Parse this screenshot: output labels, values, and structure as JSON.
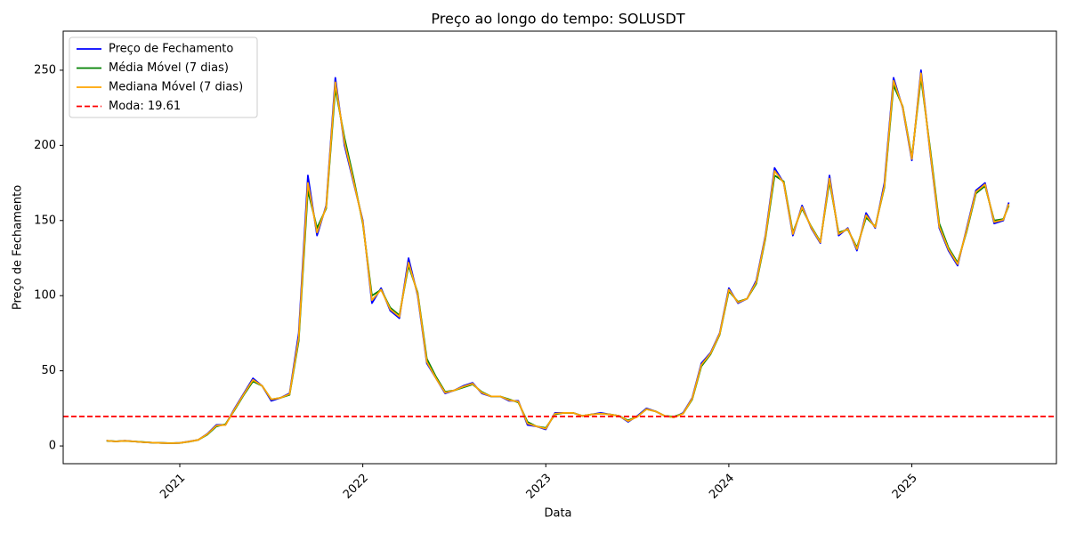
{
  "chart_data": {
    "type": "line",
    "title": "Preço ao longo do tempo: SOLUSDT",
    "x_label": "Data",
    "y_label": "Preço de Fechamento",
    "x": [
      2020.6,
      2020.65,
      2020.7,
      2020.75,
      2020.8,
      2020.85,
      2020.9,
      2020.95,
      2021,
      2021.05,
      2021.1,
      2021.15,
      2021.2,
      2021.25,
      2021.3,
      2021.35,
      2021.4,
      2021.45,
      2021.5,
      2021.55,
      2021.6,
      2021.65,
      2021.7,
      2021.75,
      2021.8,
      2021.85,
      2021.9,
      2021.95,
      2022,
      2022.05,
      2022.1,
      2022.15,
      2022.2,
      2022.25,
      2022.3,
      2022.35,
      2022.4,
      2022.45,
      2022.5,
      2022.55,
      2022.6,
      2022.65,
      2022.7,
      2022.75,
      2022.8,
      2022.85,
      2022.9,
      2022.95,
      2023,
      2023.05,
      2023.1,
      2023.15,
      2023.2,
      2023.25,
      2023.3,
      2023.35,
      2023.4,
      2023.45,
      2023.5,
      2023.55,
      2023.6,
      2023.65,
      2023.7,
      2023.75,
      2023.8,
      2023.85,
      2023.9,
      2023.95,
      2024,
      2024.05,
      2024.1,
      2024.15,
      2024.2,
      2024.25,
      2024.3,
      2024.35,
      2024.4,
      2024.45,
      2024.5,
      2024.55,
      2024.6,
      2024.65,
      2024.7,
      2024.75,
      2024.8,
      2024.85,
      2024.9,
      2024.95,
      2025,
      2025.05,
      2025.1,
      2025.15,
      2025.2,
      2025.25,
      2025.3,
      2025.35,
      2025.4,
      2025.45,
      2025.5,
      2025.53
    ],
    "series": [
      {
        "name": "Preço de Fechamento",
        "color": "#0000ff",
        "values": [
          3.5,
          3,
          3.5,
          3,
          2.5,
          2.2,
          2,
          1.8,
          2,
          3,
          4,
          8,
          14,
          14,
          25,
          35,
          45,
          40,
          30,
          32,
          35,
          75,
          180,
          140,
          160,
          245,
          200,
          175,
          150,
          95,
          105,
          90,
          85,
          125,
          100,
          55,
          45,
          35,
          37,
          40,
          42,
          35,
          33,
          33,
          30,
          30,
          14,
          13,
          11,
          22,
          22,
          22,
          20,
          21,
          22,
          21,
          20,
          16,
          20,
          25,
          23,
          20,
          19,
          22,
          32,
          55,
          62,
          75,
          105,
          95,
          98,
          110,
          140,
          185,
          175,
          140,
          160,
          145,
          135,
          180,
          140,
          145,
          130,
          155,
          145,
          175,
          245,
          225,
          190,
          250,
          195,
          145,
          130,
          120,
          145,
          170,
          175,
          148,
          150,
          162
        ]
      },
      {
        "name": "Média Móvel (7 dias)",
        "color": "#008000",
        "values": [
          3.4,
          3.1,
          3.3,
          3,
          2.6,
          2.2,
          2,
          1.9,
          2,
          2.8,
          4,
          7.5,
          13,
          14.5,
          24,
          34,
          43,
          40,
          31,
          32,
          34,
          70,
          170,
          145,
          158,
          238,
          205,
          178,
          148,
          100,
          104,
          92,
          87,
          120,
          102,
          58,
          46,
          36,
          37,
          39,
          41,
          36,
          33,
          33,
          31,
          29,
          16,
          13,
          12,
          21,
          22,
          22,
          20,
          21,
          21.5,
          21,
          20,
          17,
          19.5,
          24.5,
          23,
          20,
          19.5,
          21.5,
          31,
          53,
          61,
          74,
          103,
          96,
          98,
          108,
          138,
          180,
          176,
          142,
          158,
          146,
          136,
          176,
          142,
          144,
          132,
          152,
          146,
          172,
          240,
          226,
          192,
          245,
          198,
          148,
          132,
          122,
          143,
          168,
          173,
          150,
          151,
          160
        ]
      },
      {
        "name": "Mediana Móvel (7 dias)",
        "color": "#ffa500",
        "values": [
          3.5,
          3,
          3.4,
          3,
          2.5,
          2.2,
          2,
          1.8,
          2,
          2.9,
          4,
          7.8,
          13.5,
          14,
          24.5,
          34.5,
          44,
          40,
          31,
          32,
          34.5,
          72,
          175,
          142,
          159,
          242,
          202,
          176,
          149,
          97,
          104,
          91,
          86,
          122,
          101,
          56,
          45,
          35.5,
          37,
          39.5,
          41.5,
          35.5,
          33,
          33,
          30.5,
          29.5,
          15,
          13,
          11.5,
          21.5,
          22,
          22,
          20,
          21,
          21.5,
          21,
          20,
          16.5,
          19.5,
          24.5,
          23,
          20,
          19,
          21.5,
          31.5,
          54,
          61.5,
          74.5,
          104,
          95.5,
          98,
          109,
          139,
          183,
          175,
          141,
          159,
          145.5,
          135.5,
          178,
          141,
          144.5,
          131,
          153.5,
          145.5,
          173,
          243,
          225.5,
          191,
          248,
          196,
          146,
          131,
          121,
          144,
          169,
          174,
          149,
          150.5,
          161
        ]
      }
    ],
    "mode": {
      "name": "Moda: 19.61",
      "value": 19.61,
      "color": "#ff0000"
    },
    "xlim": [
      2020.363,
      2025.79
    ],
    "ylim": [
      -11.8,
      276
    ],
    "xticks": [
      2021,
      2022,
      2023,
      2024,
      2025
    ],
    "yticks": [
      0,
      50,
      100,
      150,
      200,
      250
    ],
    "grid": false,
    "legend": "upper left"
  }
}
